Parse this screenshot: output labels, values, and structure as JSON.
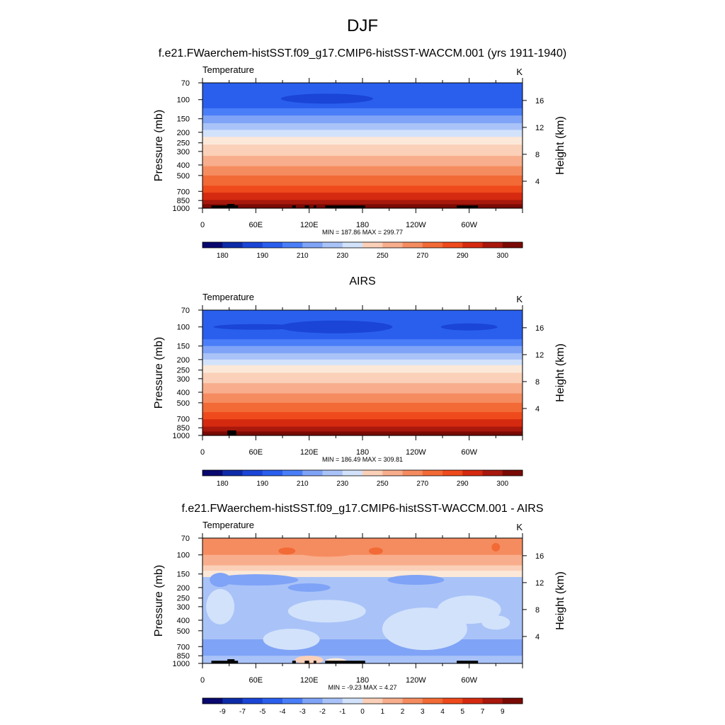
{
  "figure": {
    "title": "DJF"
  },
  "colors": {
    "temp_levels": [
      "#08086e",
      "#0d2ba8",
      "#1a45d6",
      "#2a5fee",
      "#4a7ef8",
      "#7fa3f6",
      "#a9c3f8",
      "#d2e2fb",
      "#fbe8d8",
      "#fbd0b8",
      "#f8ae8c",
      "#f58c60",
      "#f26a36",
      "#ef4a1c",
      "#d52a10",
      "#a8180c",
      "#7a0a04"
    ],
    "diff_levels": [
      "#08086e",
      "#0d2ba8",
      "#1a45d6",
      "#2a5fee",
      "#4a7ef8",
      "#7fa3f6",
      "#a9c3f8",
      "#d2e2fb",
      "#fbe8d8",
      "#fbd0b8",
      "#f8ae8c",
      "#f58c60",
      "#f26a36",
      "#ef4a1c",
      "#d52a10",
      "#a8180c",
      "#7a0a04"
    ],
    "terrain": "#000000"
  },
  "chart_data": [
    {
      "type": "heatmap",
      "panel_title": "f.e21.FWaerchem-histSST.f09_g17.CMIP6-histSST-WACCM.001 (yrs 1911-1940)",
      "left_label": "Temperature",
      "right_label": "K",
      "ylabel": "Pressure (mb)",
      "y2label": "Height (km)",
      "yticks": [
        "70",
        "100",
        "150",
        "200",
        "250",
        "300",
        "400",
        "500",
        "700",
        "850",
        "1000"
      ],
      "y2ticks": [
        "4",
        "8",
        "12",
        "16"
      ],
      "xticks": [
        "0",
        "60E",
        "120E",
        "180",
        "120W",
        "60W"
      ],
      "stats_text": "MIN = 187.86  MAX = 299.77",
      "min": 187.86,
      "max": 299.77,
      "colorbar_labels": [
        "180",
        "190",
        "210",
        "230",
        "250",
        "270",
        "290",
        "300"
      ]
    },
    {
      "type": "heatmap",
      "panel_title": "AIRS",
      "left_label": "Temperature",
      "right_label": "K",
      "ylabel": "Pressure (mb)",
      "y2label": "Height (km)",
      "yticks": [
        "70",
        "100",
        "150",
        "200",
        "250",
        "300",
        "400",
        "500",
        "700",
        "850",
        "1000"
      ],
      "y2ticks": [
        "4",
        "8",
        "12",
        "16"
      ],
      "xticks": [
        "0",
        "60E",
        "120E",
        "180",
        "120W",
        "60W"
      ],
      "stats_text": "MIN = 186.49  MAX = 309.81",
      "min": 186.49,
      "max": 309.81,
      "colorbar_labels": [
        "180",
        "190",
        "210",
        "230",
        "250",
        "270",
        "290",
        "300"
      ]
    },
    {
      "type": "heatmap",
      "panel_title": "f.e21.FWaerchem-histSST.f09_g17.CMIP6-histSST-WACCM.001 - AIRS",
      "left_label": "Temperature",
      "right_label": "K",
      "ylabel": "Pressure (mb)",
      "y2label": "Height (km)",
      "yticks": [
        "70",
        "100",
        "150",
        "200",
        "250",
        "300",
        "400",
        "500",
        "700",
        "850",
        "1000"
      ],
      "y2ticks": [
        "4",
        "8",
        "12",
        "16"
      ],
      "xticks": [
        "0",
        "60E",
        "120E",
        "180",
        "120W",
        "60W"
      ],
      "stats_text": "MIN =  -9.23  MAX =   4.27",
      "min": -9.23,
      "max": 4.27,
      "colorbar_labels": [
        "-9",
        "-7",
        "-5",
        "-4",
        "-3",
        "-2",
        "-1",
        "0",
        "1",
        "2",
        "3",
        "4",
        "5",
        "7",
        "9"
      ]
    }
  ]
}
